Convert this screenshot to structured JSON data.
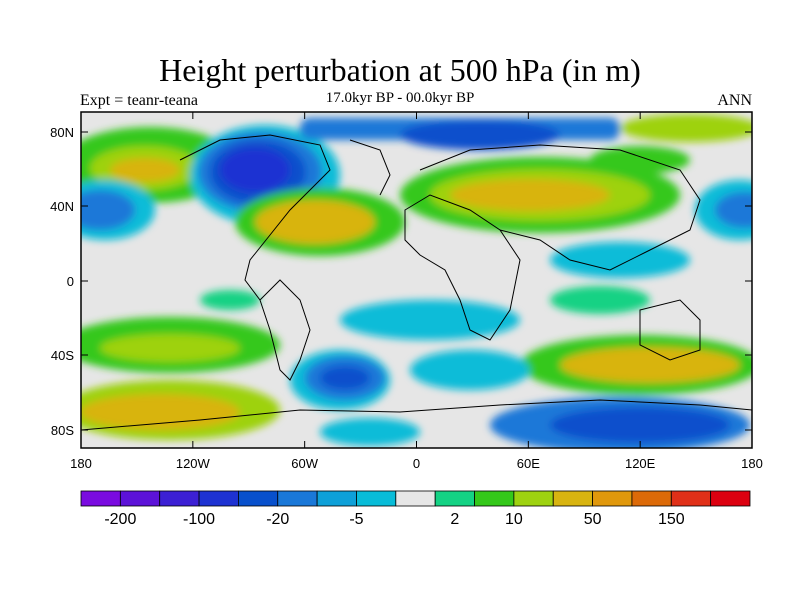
{
  "title": "Height perturbation at 500 hPa (in m)",
  "subtitle": "17.0kyr BP - 00.0kyr BP",
  "left_label": "Expt = teanr-teana",
  "right_label": "ANN",
  "lat_ticks": [
    "80N",
    "40N",
    "0",
    "40S",
    "80S"
  ],
  "lon_ticks": [
    "180",
    "120W",
    "60W",
    "0",
    "60E",
    "120E",
    "180"
  ],
  "colorbar": {
    "colors": [
      "#7a0be0",
      "#5c12d8",
      "#3c20d4",
      "#1e32d2",
      "#0850cc",
      "#1a78d8",
      "#0ea0d8",
      "#08bcd8",
      "#e6e6e6",
      "#14d284",
      "#34c81a",
      "#9ed210",
      "#d8b410",
      "#e0980c",
      "#dc6a08",
      "#e03018",
      "#dc0010"
    ],
    "labels": [
      "-200",
      "-100",
      "-20",
      "-5",
      "2",
      "10",
      "50",
      "150"
    ]
  },
  "colors": {
    "land_outline": "#000000",
    "neutral": "#e6e6e6"
  }
}
